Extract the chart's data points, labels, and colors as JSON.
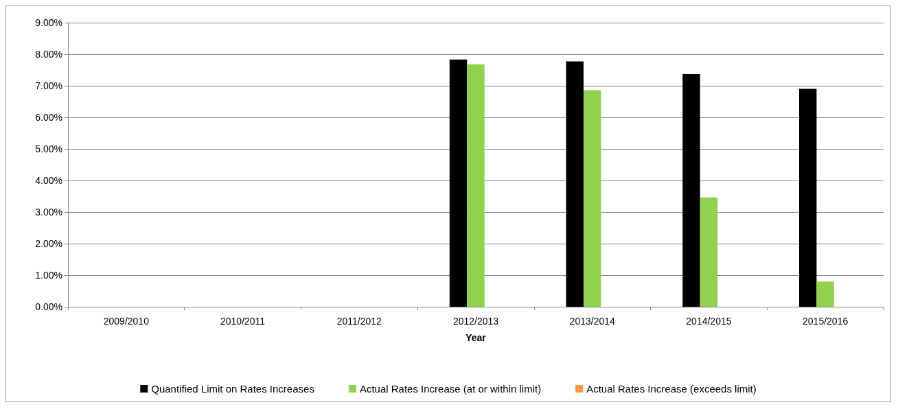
{
  "chart_data": {
    "type": "bar",
    "xlabel": "Year",
    "categories": [
      "2009/2010",
      "2010/2011",
      "2011/2012",
      "2012/2013",
      "2013/2014",
      "2014/2015",
      "2015/2016"
    ],
    "series": [
      {
        "name": "Quantified Limit on Rates Increases",
        "color": "#000000",
        "values": [
          null,
          null,
          null,
          7.83,
          7.77,
          7.37,
          6.9
        ]
      },
      {
        "name": "Actual Rates Increase (at or within limit)",
        "color": "#92d050",
        "values": [
          null,
          null,
          null,
          7.68,
          6.86,
          3.46,
          0.8
        ]
      },
      {
        "name": "Actual Rates Increase (exceeds limit)",
        "color": "#f79646",
        "values": [
          null,
          null,
          null,
          null,
          null,
          null,
          null
        ]
      }
    ],
    "ylim": [
      0,
      9
    ],
    "yticks": [
      {
        "value": 0,
        "label": "0.00%"
      },
      {
        "value": 1,
        "label": "1.00%"
      },
      {
        "value": 2,
        "label": "2.00%"
      },
      {
        "value": 3,
        "label": "3.00%"
      },
      {
        "value": 4,
        "label": "4.00%"
      },
      {
        "value": 5,
        "label": "5.00%"
      },
      {
        "value": 6,
        "label": "6.00%"
      },
      {
        "value": 7,
        "label": "7.00%"
      },
      {
        "value": 8,
        "label": "8.00%"
      },
      {
        "value": 9,
        "label": "9.00%"
      }
    ],
    "grid": "y",
    "legend": "bottom"
  }
}
